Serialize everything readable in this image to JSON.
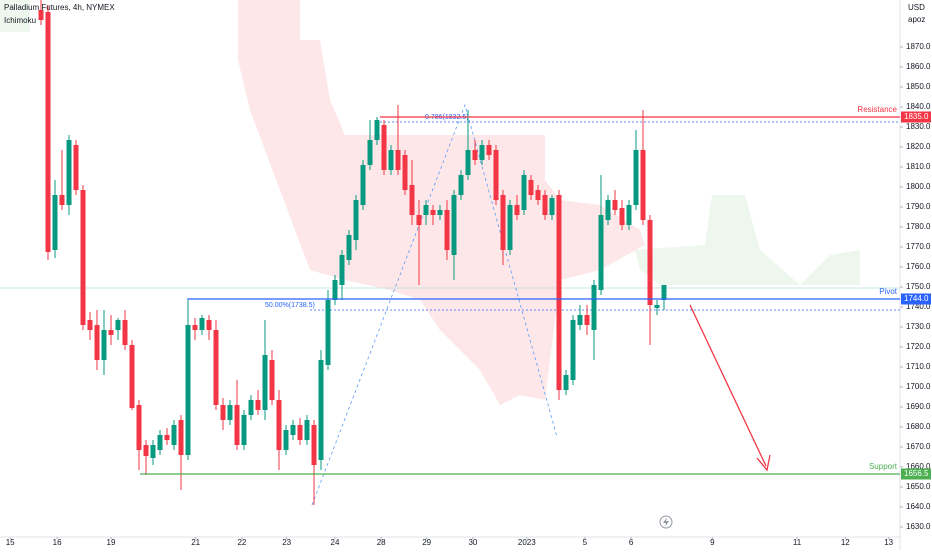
{
  "chart_data": {
    "type": "candlestick",
    "title": "Palladium Futures, 4h, NYMEX",
    "indicator": "Ichimoku",
    "currency": "USD",
    "unit_label": "apoz",
    "up_color": "#089981",
    "down_color": "#f23645",
    "x": [
      0,
      1,
      2,
      3,
      4,
      5,
      6,
      7,
      8,
      9,
      10,
      11,
      12,
      13,
      14,
      15,
      16,
      17,
      18,
      19,
      20,
      21,
      22,
      23,
      24,
      25,
      26,
      27,
      28,
      29,
      30,
      31,
      32,
      33,
      34,
      35,
      36,
      37,
      38,
      39,
      40,
      41,
      42,
      43,
      44,
      45,
      46,
      47,
      48,
      49,
      50,
      51,
      52,
      53,
      54,
      55,
      56,
      57,
      58,
      59,
      60,
      61,
      62,
      63,
      64,
      65,
      66,
      67,
      68,
      69,
      70,
      71,
      72,
      73,
      74,
      75,
      76,
      77,
      78,
      79,
      80,
      81,
      82,
      83,
      84,
      85,
      86,
      87,
      88,
      89
    ],
    "open": [
      1888.5,
      1887.5,
      1768.5,
      1796,
      1791,
      1821,
      1798.5,
      1733.5,
      1731,
      1713.5,
      1728.5,
      1728.5,
      1733.5,
      1721,
      1691,
      1671,
      1664.5,
      1668.5,
      1676,
      1671,
      1683.5,
      1666,
      1731,
      1728.5,
      1733.5,
      1728.5,
      1691,
      1683.5,
      1691,
      1671,
      1686,
      1693.5,
      1688.5,
      1713.5,
      1693.5,
      1668.5,
      1676,
      1681,
      1673.5,
      1681,
      1663.5,
      1711,
      1743.5,
      1751,
      1763.5,
      1773.5,
      1791,
      1811,
      1823.5,
      1831,
      1808.5,
      1818.5,
      1816,
      1801,
      1786,
      1786,
      1788.5,
      1786,
      1788.5,
      1766,
      1796,
      1806,
      1818.5,
      1813.5,
      1821,
      1818.5,
      1796,
      1768.5,
      1791,
      1788.5,
      1803.5,
      1798.5,
      1796,
      1786,
      1796,
      1698.5,
      1703.5,
      1731,
      1736,
      1728.5,
      1748.5,
      1783.5,
      1793.5,
      1789.5,
      1781,
      1791,
      1818.5,
      1783.5,
      1739.5,
      1743.5
    ],
    "high": [
      1893.5,
      1891,
      1803.5,
      1818.5,
      1826,
      1823.5,
      1801,
      1737.5,
      1738.5,
      1738.5,
      1736,
      1734.5,
      1738.5,
      1723.5,
      1693.5,
      1673.5,
      1673.5,
      1678.5,
      1679.5,
      1683.5,
      1686,
      1743.5,
      1734.5,
      1736,
      1736,
      1733.5,
      1694.5,
      1693.5,
      1703.5,
      1688.5,
      1696,
      1698.5,
      1733.5,
      1718.5,
      1698.5,
      1681,
      1683.5,
      1684.5,
      1686,
      1683.5,
      1718.5,
      1748.5,
      1756,
      1768.5,
      1778.5,
      1796,
      1813.5,
      1833.5,
      1835,
      1833.5,
      1821,
      1841,
      1818.5,
      1813.5,
      1793.5,
      1793.5,
      1791,
      1791,
      1793.5,
      1798.5,
      1808.5,
      1838.5,
      1823.5,
      1823.5,
      1823.5,
      1821,
      1798.5,
      1793.5,
      1796,
      1808.5,
      1806,
      1801,
      1798.5,
      1796,
      1798.5,
      1708.5,
      1736,
      1741,
      1741,
      1753.5,
      1806,
      1796,
      1798.5,
      1793.5,
      1793.5,
      1828.5,
      1838.5,
      1786,
      1743.5,
      1751
    ],
    "low": [
      1881,
      1763.5,
      1764.5,
      1788.5,
      1786,
      1796,
      1728.5,
      1723.5,
      1708.5,
      1706,
      1721,
      1723.5,
      1718.5,
      1688.5,
      1658.5,
      1656,
      1661,
      1666,
      1671,
      1668.5,
      1648.5,
      1663.5,
      1723.5,
      1726,
      1723.5,
      1688.5,
      1678.5,
      1681,
      1668.5,
      1668.5,
      1683.5,
      1686,
      1683.5,
      1691,
      1658.5,
      1666,
      1673.5,
      1671,
      1671,
      1641,
      1658.5,
      1708.5,
      1741,
      1743.5,
      1761,
      1768.5,
      1788.5,
      1808.5,
      1821,
      1806,
      1806,
      1806,
      1796,
      1781,
      1751,
      1781,
      1781,
      1783.5,
      1763.5,
      1753.5,
      1793.5,
      1803.5,
      1811,
      1811,
      1813.5,
      1791,
      1761,
      1766,
      1783.5,
      1786,
      1793.5,
      1791,
      1783.5,
      1783.5,
      1693.5,
      1696,
      1701,
      1728.5,
      1726,
      1713.5,
      1746,
      1781,
      1786,
      1778.5,
      1778.5,
      1788.5,
      1781,
      1721,
      1736,
      1738.5
    ],
    "close": [
      1883.5,
      1767.5,
      1796,
      1791,
      1823.5,
      1798.5,
      1731,
      1728.5,
      1713.5,
      1728.5,
      1726,
      1733.5,
      1721,
      1689.5,
      1668.5,
      1665.5,
      1671,
      1676,
      1673.5,
      1681,
      1666,
      1731,
      1728.5,
      1734.5,
      1728.5,
      1691,
      1683.5,
      1691,
      1671,
      1686,
      1693.5,
      1688.5,
      1716,
      1693.5,
      1668.5,
      1678.5,
      1681,
      1673.5,
      1683.5,
      1661,
      1713.5,
      1743.5,
      1753.5,
      1766,
      1776,
      1793.5,
      1811,
      1823.5,
      1833.5,
      1808.5,
      1818.5,
      1808.5,
      1798.5,
      1786,
      1781,
      1791,
      1786,
      1788.5,
      1768.5,
      1796,
      1806,
      1818.5,
      1813.5,
      1821,
      1816,
      1793.5,
      1768.5,
      1791,
      1786,
      1806,
      1796,
      1793.5,
      1786,
      1794.5,
      1698.5,
      1706,
      1733.5,
      1736,
      1731,
      1751,
      1786,
      1793.5,
      1788.5,
      1781,
      1791,
      1818.5,
      1783.5,
      1741,
      1741,
      1751
    ],
    "xlim": [
      -5.857,
      122.714
    ],
    "xticks": [
      {
        "value": -4.4,
        "label": "15"
      },
      {
        "value": 2.3,
        "label": "16"
      },
      {
        "value": 10,
        "label": "19"
      },
      {
        "value": 22.1,
        "label": "21"
      },
      {
        "value": 28.7,
        "label": "22"
      },
      {
        "value": 35.1,
        "label": "23"
      },
      {
        "value": 42,
        "label": "24"
      },
      {
        "value": 48.6,
        "label": "28"
      },
      {
        "value": 55.1,
        "label": "29"
      },
      {
        "value": 61.7,
        "label": "30"
      },
      {
        "value": 69.4,
        "label": "2023"
      },
      {
        "value": 77.7,
        "label": "5"
      },
      {
        "value": 84.3,
        "label": "6"
      },
      {
        "value": 95.9,
        "label": "9"
      },
      {
        "value": 108,
        "label": "11"
      },
      {
        "value": 114.9,
        "label": "12"
      },
      {
        "value": 121.1,
        "label": "13"
      }
    ],
    "ylim": [
      1625,
      1893.5
    ],
    "yticks": [
      {
        "value": 1630,
        "label": "1630.0"
      },
      {
        "value": 1640,
        "label": "1640.0"
      },
      {
        "value": 1650,
        "label": "1650.0"
      },
      {
        "value": 1660,
        "label": "1660.0"
      },
      {
        "value": 1670,
        "label": "1670.0"
      },
      {
        "value": 1680,
        "label": "1680.0"
      },
      {
        "value": 1690,
        "label": "1690.0"
      },
      {
        "value": 1700,
        "label": "1700.0"
      },
      {
        "value": 1710,
        "label": "1710.0"
      },
      {
        "value": 1720,
        "label": "1720.0"
      },
      {
        "value": 1730,
        "label": "1730.0"
      },
      {
        "value": 1740,
        "label": "1740.0"
      },
      {
        "value": 1750,
        "label": "1750.0"
      },
      {
        "value": 1760,
        "label": "1760.0"
      },
      {
        "value": 1770,
        "label": "1770.0"
      },
      {
        "value": 1780,
        "label": "1780.0"
      },
      {
        "value": 1790,
        "label": "1790.0"
      },
      {
        "value": 1800,
        "label": "1800.0"
      },
      {
        "value": 1810,
        "label": "1810.0"
      },
      {
        "value": 1820,
        "label": "1820.0"
      },
      {
        "value": 1830,
        "label": "1830.0"
      },
      {
        "value": 1840,
        "label": "1840.0"
      },
      {
        "value": 1850,
        "label": "1850.0"
      },
      {
        "value": 1860,
        "label": "1860.0"
      },
      {
        "value": 1870,
        "label": "1870.0"
      }
    ],
    "levels": [
      {
        "name": "Resistance",
        "value": 1835,
        "label": "1835.0",
        "color": "#f23645"
      },
      {
        "name": "Pivot",
        "value": 1744,
        "label": "1744.0",
        "color": "#2962ff"
      },
      {
        "name": "Support",
        "value": 1656.5,
        "label": "1656.5",
        "color": "#4caf50"
      }
    ],
    "fib_levels": [
      {
        "label": "0.786(1832.5)",
        "value": 1832.5
      },
      {
        "label": "50.00%(1738.5)",
        "value": 1738.5
      }
    ]
  }
}
